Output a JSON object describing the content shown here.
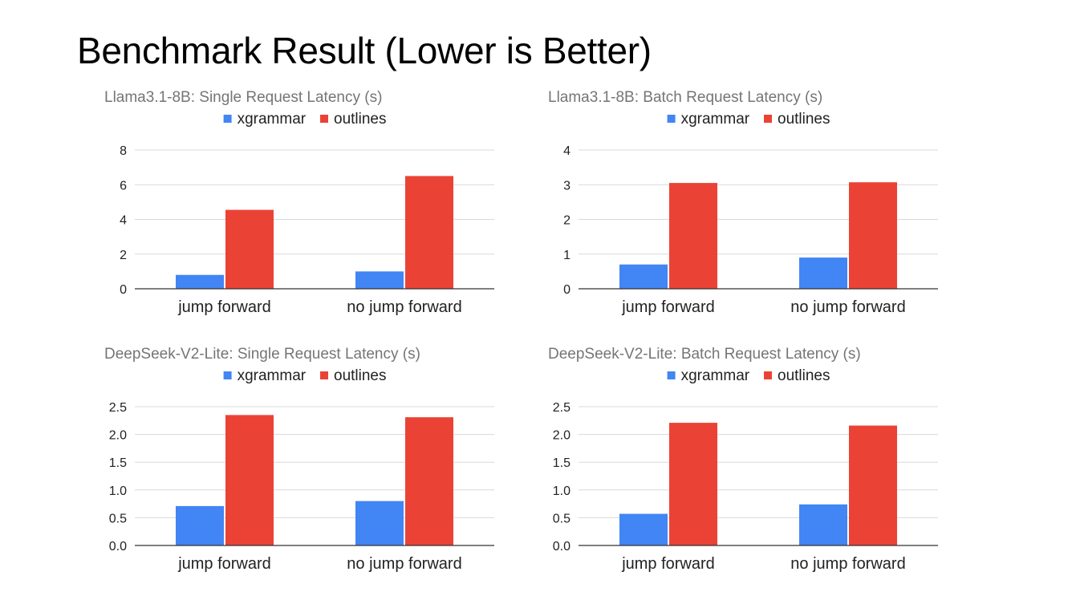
{
  "slide": {
    "title": "Benchmark Result (Lower is Better)"
  },
  "colors": {
    "xgrammar": "#4285f4",
    "outlines": "#ea4335",
    "title_text": "#757575",
    "axis_text": "#222222",
    "grid": "#d9d9d9",
    "baseline": "#333333"
  },
  "chart_data": [
    {
      "type": "bar",
      "title": "Llama3.1-8B: Single Request Latency (s)",
      "categories": [
        "jump forward",
        "no jump forward"
      ],
      "series": [
        {
          "name": "xgrammar",
          "values": [
            0.8,
            1.0
          ]
        },
        {
          "name": "outlines",
          "values": [
            4.55,
            6.5
          ]
        }
      ],
      "ylim": [
        0,
        8
      ],
      "yticks": [
        "0",
        "2",
        "4",
        "6",
        "8"
      ],
      "legend": "top",
      "grid": true
    },
    {
      "type": "bar",
      "title": "Llama3.1-8B: Batch Request Latency (s)",
      "categories": [
        "jump forward",
        "no jump forward"
      ],
      "series": [
        {
          "name": "xgrammar",
          "values": [
            0.7,
            0.9
          ]
        },
        {
          "name": "outlines",
          "values": [
            3.05,
            3.07
          ]
        }
      ],
      "ylim": [
        0,
        4
      ],
      "yticks": [
        "0",
        "1",
        "2",
        "3",
        "4"
      ],
      "legend": "top",
      "grid": true
    },
    {
      "type": "bar",
      "title": "DeepSeek-V2-Lite: Single Request Latency (s)",
      "categories": [
        "jump forward",
        "no jump forward"
      ],
      "series": [
        {
          "name": "xgrammar",
          "values": [
            0.71,
            0.8
          ]
        },
        {
          "name": "outlines",
          "values": [
            2.35,
            2.31
          ]
        }
      ],
      "ylim": [
        0,
        2.5
      ],
      "yticks": [
        "0.0",
        "0.5",
        "1.0",
        "1.5",
        "2.0",
        "2.5"
      ],
      "legend": "top",
      "grid": true
    },
    {
      "type": "bar",
      "title": "DeepSeek-V2-Lite: Batch Request Latency (s)",
      "categories": [
        "jump forward",
        "no jump forward"
      ],
      "series": [
        {
          "name": "xgrammar",
          "values": [
            0.57,
            0.74
          ]
        },
        {
          "name": "outlines",
          "values": [
            2.21,
            2.16
          ]
        }
      ],
      "ylim": [
        0,
        2.5
      ],
      "yticks": [
        "0.0",
        "0.5",
        "1.0",
        "1.5",
        "2.0",
        "2.5"
      ],
      "legend": "top",
      "grid": true
    }
  ]
}
